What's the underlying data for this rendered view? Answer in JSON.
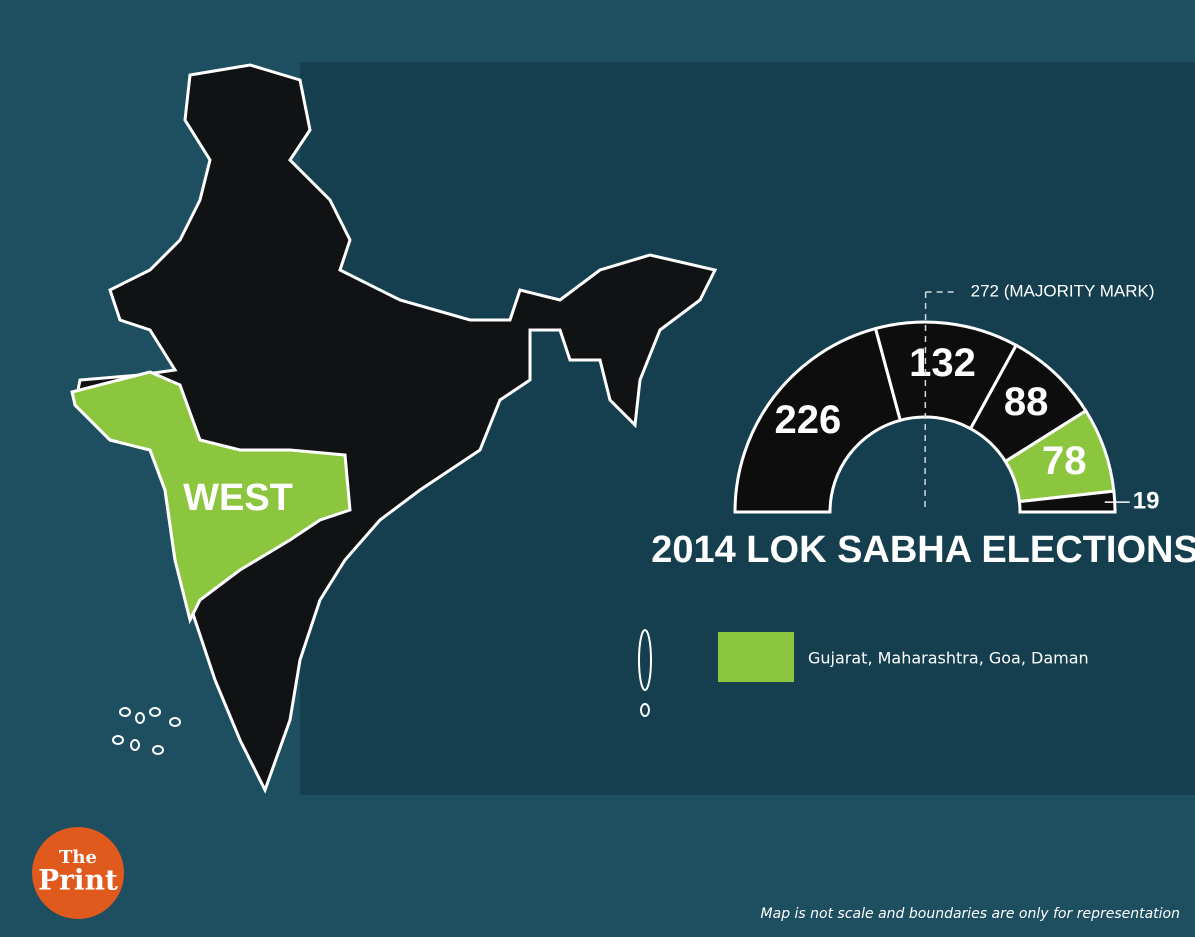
{
  "map": {
    "region_label": "WEST",
    "legend": {
      "label": "Gujarat, Maharashtra, Goa, Daman",
      "color": "#8cc63f"
    }
  },
  "chart_data": {
    "type": "half-donut",
    "title": "2014 LOK SABHA ELECTIONS",
    "values": [
      226,
      132,
      88,
      78,
      19
    ],
    "colors": [
      "#0d0d0d",
      "#0d0d0d",
      "#0d0d0d",
      "#8cc63f",
      "#0d0d0d"
    ],
    "reference_line": {
      "value": 272,
      "label": "272 (MAJORITY MARK)"
    }
  },
  "logo": {
    "line1": "The",
    "line2": "Print"
  },
  "footnote": "Map is not scale and boundaries are only for representation"
}
